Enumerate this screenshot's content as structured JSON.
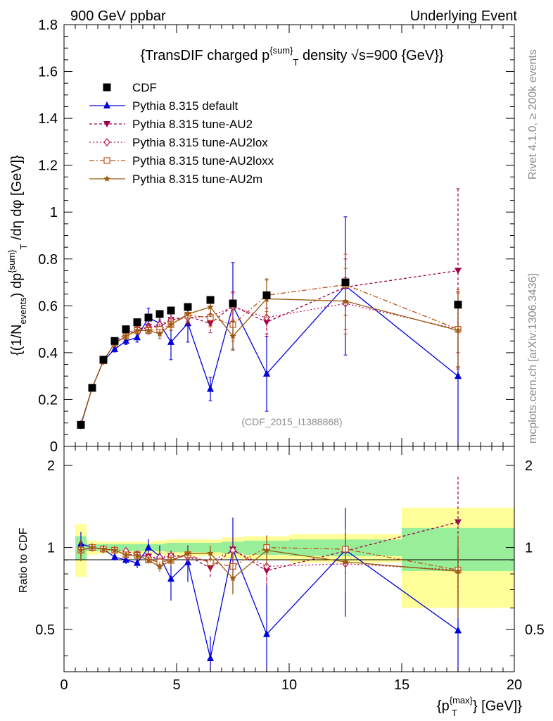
{
  "header": {
    "left": "900 GeV ppbar",
    "right": "Underlying Event"
  },
  "side": {
    "rivet": "Rivet 4.1.0, ≥ 200k events",
    "mcplots": "mcplots.cern.ch [arXiv:1306.3436]"
  },
  "chart_data": {
    "type": "line",
    "title": "{TransDIF charged p^{sum}_T density √s=900 {GeV}}",
    "analysis_tag": "(CDF_2015_I1388868)",
    "xlabel": "{p_T^{max}} [GeV]",
    "ylabel": "{(1/N_events) dp^{sum}_T /dη dφ [GeV]}",
    "ratio_ylabel": "Ratio to CDF",
    "xlim": [
      0,
      20
    ],
    "ylim": [
      0,
      1.8
    ],
    "ratio_ylim": [
      0.35,
      2.35
    ],
    "x_ticks": [
      0,
      5,
      10,
      15,
      20
    ],
    "y_ticks": [
      0,
      0.2,
      0.4,
      0.6,
      0.8,
      1,
      1.2,
      1.4,
      1.6,
      1.8
    ],
    "y_tick_labels": [
      "0",
      "0.2",
      "0.4",
      "0.6",
      "0.8",
      "1",
      "1.2",
      "1.4",
      "1.6",
      "1.8"
    ],
    "ratio_ticks": [
      0.5,
      1,
      2
    ],
    "ratio_tick_labels": [
      "0.5",
      "1",
      "2"
    ],
    "x_tick_labels": [
      "0",
      "5",
      "10",
      "15",
      "20"
    ],
    "bins": [
      [
        0.5,
        1
      ],
      [
        1,
        1.5
      ],
      [
        1.5,
        2
      ],
      [
        2,
        2.5
      ],
      [
        2.5,
        3
      ],
      [
        3,
        3.5
      ],
      [
        3.5,
        4
      ],
      [
        4,
        4.5
      ],
      [
        4.5,
        5
      ],
      [
        5,
        6
      ],
      [
        6,
        7
      ],
      [
        7,
        8
      ],
      [
        8,
        10
      ],
      [
        10,
        15
      ],
      [
        15,
        20
      ]
    ],
    "x": [
      0.75,
      1.25,
      1.75,
      2.25,
      2.75,
      3.25,
      3.75,
      4.25,
      4.75,
      5.5,
      6.5,
      7.5,
      9.0,
      12.5,
      17.5
    ],
    "data": {
      "name": "CDF",
      "values": [
        0.092,
        0.25,
        0.37,
        0.45,
        0.5,
        0.53,
        0.55,
        0.565,
        0.58,
        0.595,
        0.625,
        0.61,
        0.645,
        0.7,
        0.605
      ],
      "band_inner": [
        0.1,
        0.03,
        0.03,
        0.03,
        0.03,
        0.03,
        0.03,
        0.03,
        0.04,
        0.04,
        0.04,
        0.05,
        0.06,
        0.07,
        0.18
      ],
      "band_outer": [
        0.22,
        0.06,
        0.05,
        0.05,
        0.05,
        0.05,
        0.05,
        0.06,
        0.07,
        0.07,
        0.07,
        0.09,
        0.1,
        0.12,
        0.4
      ]
    },
    "series": [
      {
        "name": "Pythia 8.315 default",
        "color": "#0000dd",
        "marker": "triangle-up",
        "dash": "",
        "values": [
          0.095,
          0.25,
          0.365,
          0.415,
          0.45,
          0.465,
          0.55,
          0.525,
          0.445,
          0.525,
          0.245,
          0.6,
          0.31,
          0.685,
          0.3
        ],
        "errors": [
          0.01,
          0.005,
          0.01,
          0.012,
          0.015,
          0.02,
          0.04,
          0.05,
          0.075,
          0.08,
          0.05,
          0.185,
          0.16,
          0.295,
          0.3
        ]
      },
      {
        "name": "Pythia 8.315 tune-AU2",
        "color": "#a0004a",
        "marker": "triangle-down",
        "dash": "4,3",
        "values": [
          0.09,
          0.25,
          0.365,
          0.44,
          0.47,
          0.5,
          0.51,
          0.51,
          0.54,
          0.555,
          0.525,
          0.6,
          0.53,
          0.68,
          0.75
        ],
        "errors": [
          0.008,
          0.005,
          0.008,
          0.01,
          0.01,
          0.015,
          0.015,
          0.02,
          0.025,
          0.03,
          0.04,
          0.06,
          0.06,
          0.12,
          0.35
        ]
      },
      {
        "name": "Pythia 8.315 tune-AU2lox",
        "color": "#bb1155",
        "marker": "diamond-open",
        "dash": "2,3",
        "values": [
          0.09,
          0.25,
          0.365,
          0.44,
          0.485,
          0.5,
          0.505,
          0.52,
          0.54,
          0.55,
          0.555,
          0.595,
          0.55,
          0.61,
          0.5
        ],
        "errors": [
          0.008,
          0.005,
          0.008,
          0.01,
          0.01,
          0.015,
          0.015,
          0.02,
          0.025,
          0.03,
          0.04,
          0.06,
          0.07,
          0.11,
          0.16
        ]
      },
      {
        "name": "Pythia 8.315 tune-AU2loxx",
        "color": "#c05010",
        "marker": "square-open",
        "dash": "7,3,2,3",
        "values": [
          0.09,
          0.25,
          0.365,
          0.44,
          0.47,
          0.495,
          0.495,
          0.5,
          0.52,
          0.56,
          0.55,
          0.52,
          0.645,
          0.69,
          0.5
        ],
        "errors": [
          0.008,
          0.005,
          0.008,
          0.01,
          0.01,
          0.015,
          0.015,
          0.02,
          0.025,
          0.03,
          0.04,
          0.07,
          0.07,
          0.13,
          0.17
        ]
      },
      {
        "name": "Pythia 8.315 tune-AU2m",
        "color": "#9a5a10",
        "marker": "star",
        "dash": "",
        "values": [
          0.09,
          0.25,
          0.365,
          0.44,
          0.47,
          0.495,
          0.495,
          0.48,
          0.52,
          0.565,
          0.595,
          0.47,
          0.63,
          0.62,
          0.495
        ],
        "errors": [
          0.008,
          0.005,
          0.008,
          0.01,
          0.01,
          0.015,
          0.015,
          0.02,
          0.025,
          0.03,
          0.04,
          0.06,
          0.08,
          0.14,
          0.16
        ]
      }
    ]
  }
}
